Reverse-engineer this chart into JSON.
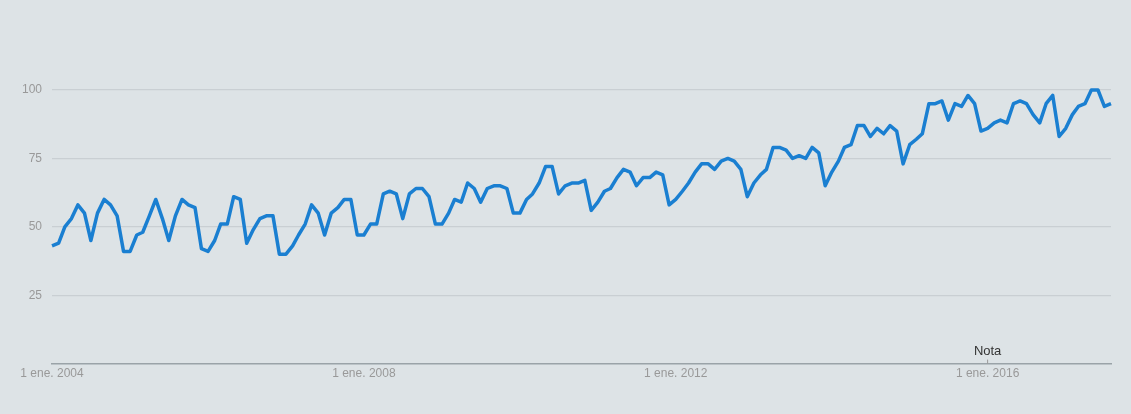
{
  "chart_data": {
    "type": "line",
    "x": [
      "2004-01",
      "2004-02",
      "2004-03",
      "2004-04",
      "2004-05",
      "2004-06",
      "2004-07",
      "2004-08",
      "2004-09",
      "2004-10",
      "2004-11",
      "2004-12",
      "2005-01",
      "2005-02",
      "2005-03",
      "2005-04",
      "2005-05",
      "2005-06",
      "2005-07",
      "2005-08",
      "2005-09",
      "2005-10",
      "2005-11",
      "2005-12",
      "2006-01",
      "2006-02",
      "2006-03",
      "2006-04",
      "2006-05",
      "2006-06",
      "2006-07",
      "2006-08",
      "2006-09",
      "2006-10",
      "2006-11",
      "2006-12",
      "2007-01",
      "2007-02",
      "2007-03",
      "2007-04",
      "2007-05",
      "2007-06",
      "2007-07",
      "2007-08",
      "2007-09",
      "2007-10",
      "2007-11",
      "2007-12",
      "2008-01",
      "2008-02",
      "2008-03",
      "2008-04",
      "2008-05",
      "2008-06",
      "2008-07",
      "2008-08",
      "2008-09",
      "2008-10",
      "2008-11",
      "2008-12",
      "2009-01",
      "2009-02",
      "2009-03",
      "2009-04",
      "2009-05",
      "2009-06",
      "2009-07",
      "2009-08",
      "2009-09",
      "2009-10",
      "2009-11",
      "2009-12",
      "2010-01",
      "2010-02",
      "2010-03",
      "2010-04",
      "2010-05",
      "2010-06",
      "2010-07",
      "2010-08",
      "2010-09",
      "2010-10",
      "2010-11",
      "2010-12",
      "2011-01",
      "2011-02",
      "2011-03",
      "2011-04",
      "2011-05",
      "2011-06",
      "2011-07",
      "2011-08",
      "2011-09",
      "2011-10",
      "2011-11",
      "2011-12",
      "2012-01",
      "2012-02",
      "2012-03",
      "2012-04",
      "2012-05",
      "2012-06",
      "2012-07",
      "2012-08",
      "2012-09",
      "2012-10",
      "2012-11",
      "2012-12",
      "2013-01",
      "2013-02",
      "2013-03",
      "2013-04",
      "2013-05",
      "2013-06",
      "2013-07",
      "2013-08",
      "2013-09",
      "2013-10",
      "2013-11",
      "2013-12",
      "2014-01",
      "2014-02",
      "2014-03",
      "2014-04",
      "2014-05",
      "2014-06",
      "2014-07",
      "2014-08",
      "2014-09",
      "2014-10",
      "2014-11",
      "2014-12",
      "2015-01",
      "2015-02",
      "2015-03",
      "2015-04",
      "2015-05",
      "2015-06",
      "2015-07",
      "2015-08",
      "2015-09",
      "2015-10",
      "2015-11",
      "2015-12",
      "2016-01",
      "2016-02",
      "2016-03",
      "2016-04",
      "2016-05",
      "2016-06",
      "2016-07",
      "2016-08",
      "2016-09",
      "2016-10",
      "2016-11",
      "2016-12",
      "2017-01",
      "2017-02",
      "2017-03",
      "2017-04",
      "2017-05",
      "2017-06",
      "2017-07",
      "2017-08"
    ],
    "series": [
      {
        "color": "#1a7fd1",
        "values": [
          43,
          44,
          50,
          53,
          58,
          55,
          45,
          55,
          60,
          58,
          54,
          41,
          41,
          47,
          48,
          54,
          60,
          53,
          45,
          54,
          60,
          58,
          57,
          42,
          41,
          45,
          51,
          51,
          61,
          60,
          44,
          49,
          53,
          54,
          54,
          40,
          40,
          43,
          47,
          51,
          58,
          55,
          47,
          55,
          57,
          60,
          60,
          47,
          47,
          51,
          51,
          62,
          63,
          62,
          53,
          62,
          64,
          64,
          61,
          51,
          51,
          55,
          60,
          59,
          66,
          64,
          59,
          64,
          65,
          65,
          64,
          55,
          55,
          60,
          62,
          66,
          72,
          72,
          62,
          65,
          66,
          66,
          67,
          56,
          59,
          63,
          64,
          68,
          71,
          70,
          65,
          68,
          68,
          70,
          69,
          58,
          60,
          63,
          66,
          70,
          73,
          73,
          71,
          74,
          75,
          74,
          71,
          61,
          66,
          69,
          71,
          79,
          79,
          78,
          75,
          76,
          75,
          79,
          77,
          65,
          70,
          74,
          79,
          80,
          87,
          87,
          83,
          86,
          84,
          87,
          85,
          73,
          80,
          82,
          84,
          95,
          95,
          96,
          89,
          95,
          94,
          98,
          95,
          85,
          86,
          88,
          89,
          88,
          95,
          96,
          95,
          91,
          88,
          95,
          98,
          83,
          86,
          91,
          94,
          95,
          100,
          100,
          94,
          95
        ]
      }
    ],
    "xlim": [
      "2004-01",
      "2017-08"
    ],
    "xticks": [
      {
        "value": "2004-01-01",
        "label": "1 ene. 2004"
      },
      {
        "value": "2008-01-01",
        "label": "1 ene. 2008"
      },
      {
        "value": "2012-01-01",
        "label": "1 ene. 2012"
      },
      {
        "value": "2016-01-01",
        "label": "1 ene. 2016"
      }
    ],
    "ylim": [
      0,
      100
    ],
    "yticks": [
      25,
      50,
      75,
      100
    ],
    "grid": "y",
    "marker": "none",
    "line_style": "solid",
    "legend": false,
    "annotations": [
      "Nota"
    ]
  }
}
